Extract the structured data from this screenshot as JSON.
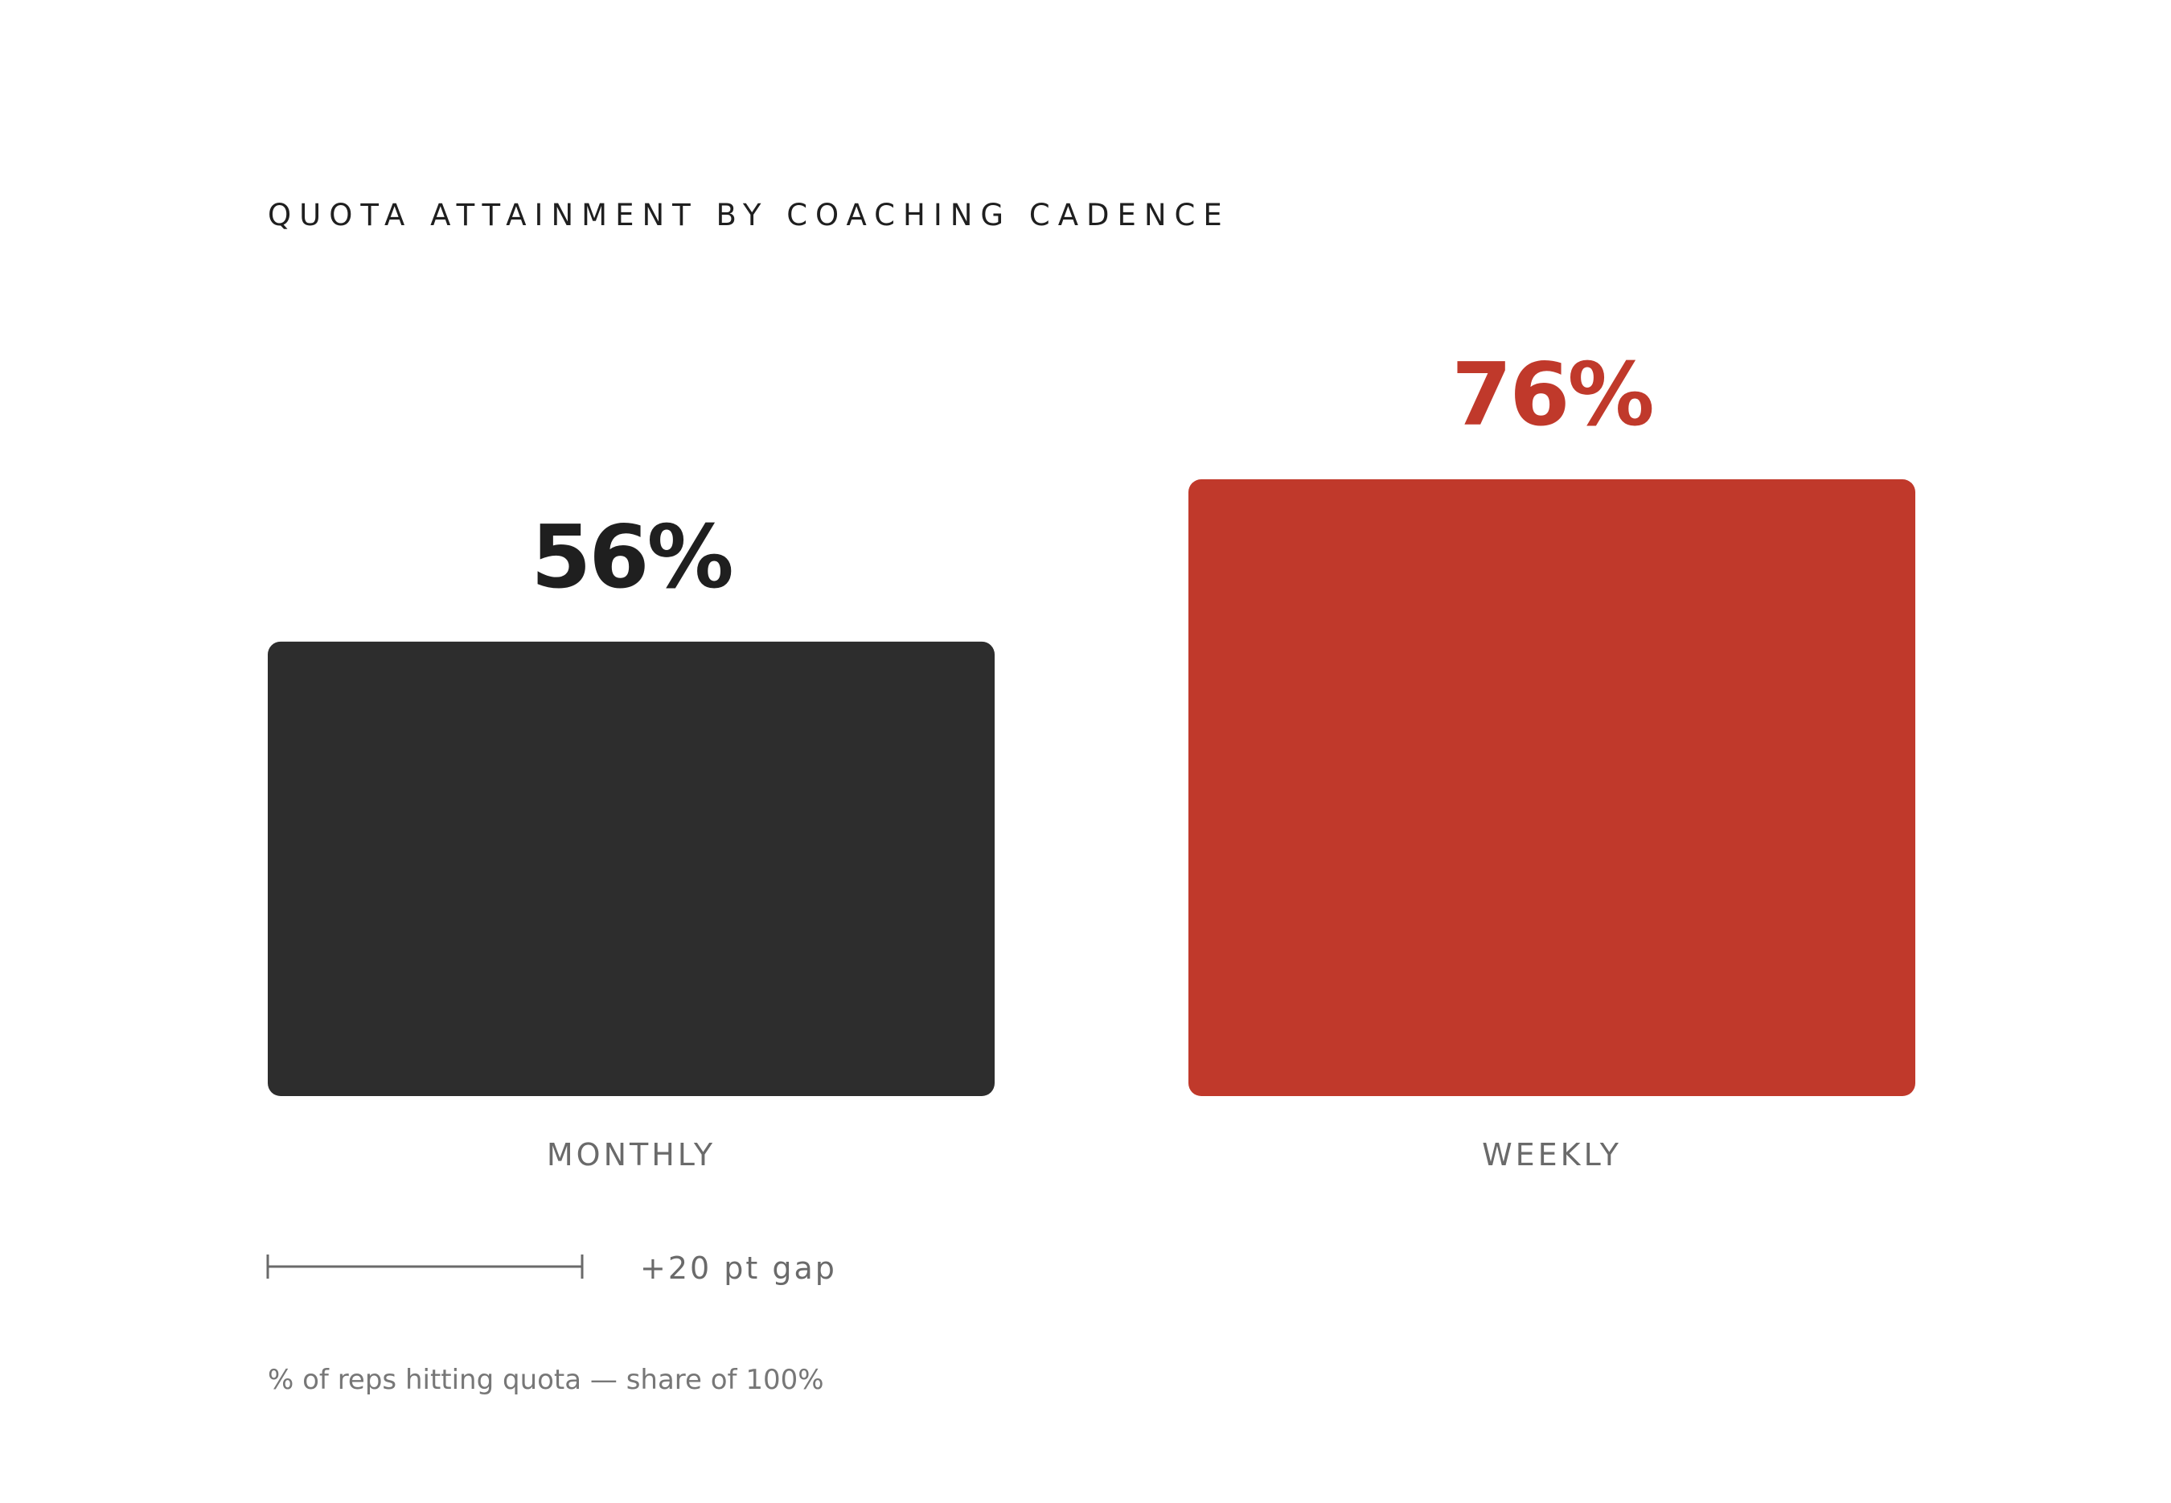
{
  "chart_data": {
    "type": "bar",
    "title": "QUOTA ATTAINMENT BY COACHING CADENCE",
    "categories": [
      "MONTHLY",
      "WEEKLY"
    ],
    "values": [
      56,
      76
    ],
    "value_labels": [
      "56%",
      "76%"
    ],
    "colors": [
      "#2d2d2d",
      "#c0392b"
    ],
    "label_colors": [
      "#1f1f1f",
      "#c0392b"
    ],
    "ylim": [
      0,
      100
    ],
    "unit": "%",
    "annotation": "+20 pt gap",
    "footnote": "% of reps hitting quota — share of 100%",
    "grid": false,
    "legend": "none"
  }
}
